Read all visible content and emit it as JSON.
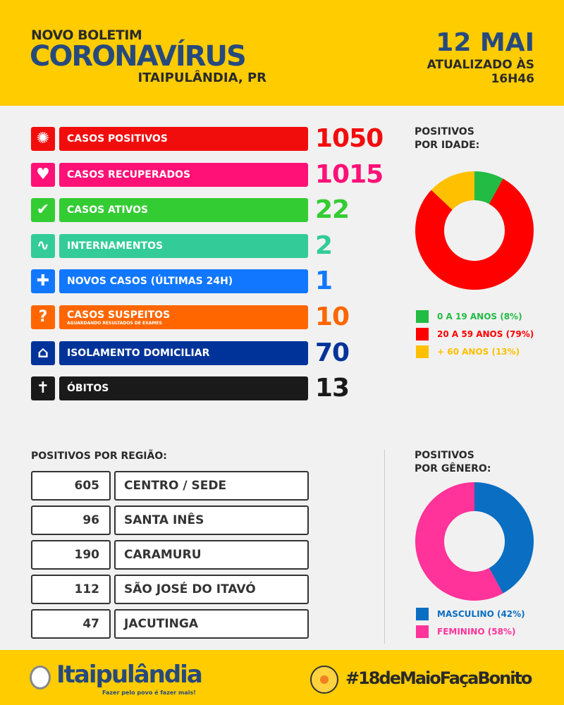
{
  "header": {
    "kicker": "NOVO BOLETIM",
    "title": "CORONAVÍRUS",
    "location": "ITAIPULÂNDIA, PR",
    "date": "12 MAI",
    "updated_label": "ATUALIZADO ÀS",
    "updated_time": "16H46"
  },
  "stats": [
    {
      "label": "CASOS POSITIVOS",
      "sub": "",
      "value": "1050",
      "color": "#f20d0d",
      "icon": "virus-icon"
    },
    {
      "label": "CASOS RECUPERADOS",
      "sub": "",
      "value": "1015",
      "color": "#ff1177",
      "icon": "heart-icon"
    },
    {
      "label": "CASOS ATIVOS",
      "sub": "",
      "value": "22",
      "color": "#33cc33",
      "icon": "check-icon"
    },
    {
      "label": "INTERNAMENTOS",
      "sub": "",
      "value": "2",
      "color": "#33cc99",
      "icon": "heartbeat-icon"
    },
    {
      "label": "NOVOS CASOS (ÚLTIMAS 24H)",
      "sub": "",
      "value": "1",
      "color": "#1177ff",
      "icon": "plus-icon"
    },
    {
      "label": "CASOS SUSPEITOS",
      "sub": "AGUARDANDO RESULTADOS DE EXAMES",
      "value": "10",
      "color": "#ff6600",
      "icon": "question-icon"
    },
    {
      "label": "ISOLAMENTO DOMICILIAR",
      "sub": "",
      "value": "70",
      "color": "#003399",
      "icon": "home-isolation-icon"
    },
    {
      "label": "ÓBITOS",
      "sub": "",
      "value": "13",
      "color": "#1a1a1a",
      "icon": "cross-icon"
    }
  ],
  "region": {
    "title": "POSITIVOS POR REGIÃO:",
    "rows": [
      {
        "count": "605",
        "name": "CENTRO / SEDE"
      },
      {
        "count": "96",
        "name": "SANTA INÊS"
      },
      {
        "count": "190",
        "name": "CARAMURU"
      },
      {
        "count": "112",
        "name": "SÃO JOSÉ DO ITAVÓ"
      },
      {
        "count": "47",
        "name": "JACUTINGA"
      }
    ]
  },
  "chart_data": [
    {
      "type": "pie",
      "title": "POSITIVOS POR IDADE:",
      "donut": true,
      "categories": [
        "0 A 19 ANOS (8%)",
        "20 A 59 ANOS (79%)",
        "+ 60 ANOS (13%)"
      ],
      "values": [
        8,
        79,
        13
      ],
      "colors": [
        "#22bb44",
        "#ff0000",
        "#ffc000"
      ]
    },
    {
      "type": "pie",
      "title": "POSITIVOS POR GÊNERO:",
      "donut": true,
      "categories": [
        "MASCULINO (42%)",
        "FEMININO (58%)"
      ],
      "values": [
        42,
        58
      ],
      "colors": [
        "#0a6ec2",
        "#ff3399"
      ]
    }
  ],
  "footer": {
    "municipality_logo": "MUNICÍPIO DE Itaipulândia",
    "slogan": "Fazer pelo povo é fazer mais!",
    "campaign_hashtag": "#18deMaioFaçaBonito"
  }
}
